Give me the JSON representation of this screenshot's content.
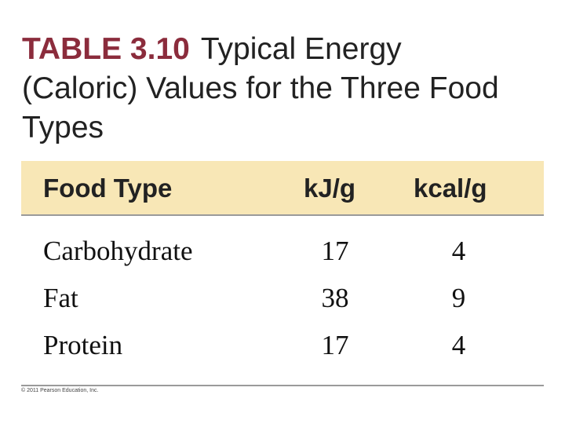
{
  "header": {
    "label": "TABLE 3.10",
    "title": "Typical Energy (Caloric) Values for the Three Food Types"
  },
  "table": {
    "columns": [
      "Food Type",
      "kJ/g",
      "kcal/g"
    ],
    "rows": [
      [
        "Carbohydrate",
        17,
        4
      ],
      [
        "Fat",
        38,
        9
      ],
      [
        "Protein",
        17,
        4
      ]
    ]
  },
  "footer": {
    "copyright": "© 2011 Pearson Education, Inc."
  }
}
